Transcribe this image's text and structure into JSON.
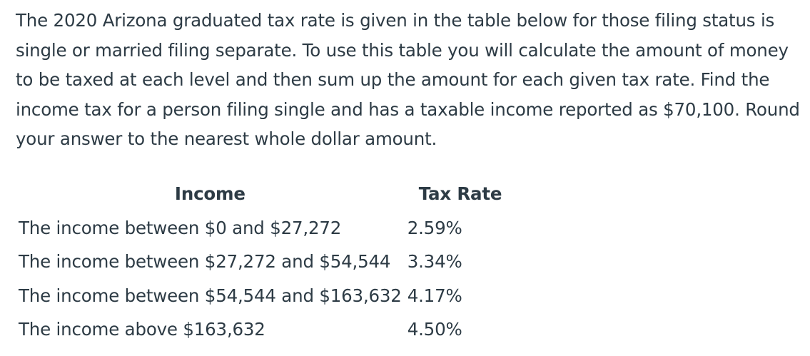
{
  "question": {
    "text": "The 2020 Arizona graduated tax rate is given in the table below for those filing status is single or married filing separate. To use this table you will calculate the amount of money to be taxed at each level and then sum up the amount for each given tax rate. Find the income tax for a person filing single and has a taxable income reported as $70,100. Round your answer to the nearest whole dollar amount."
  },
  "table": {
    "headers": {
      "income": "Income",
      "rate": "Tax Rate"
    },
    "rows": [
      {
        "income": "The income between $0 and $27,272",
        "rate": "2.59%"
      },
      {
        "income": "The income between $27,272 and $54,544",
        "rate": "3.34%"
      },
      {
        "income": "The income between $54,544 and $163,632",
        "rate": "4.17%"
      },
      {
        "income": "The income above $163,632",
        "rate": "4.50%"
      }
    ]
  }
}
